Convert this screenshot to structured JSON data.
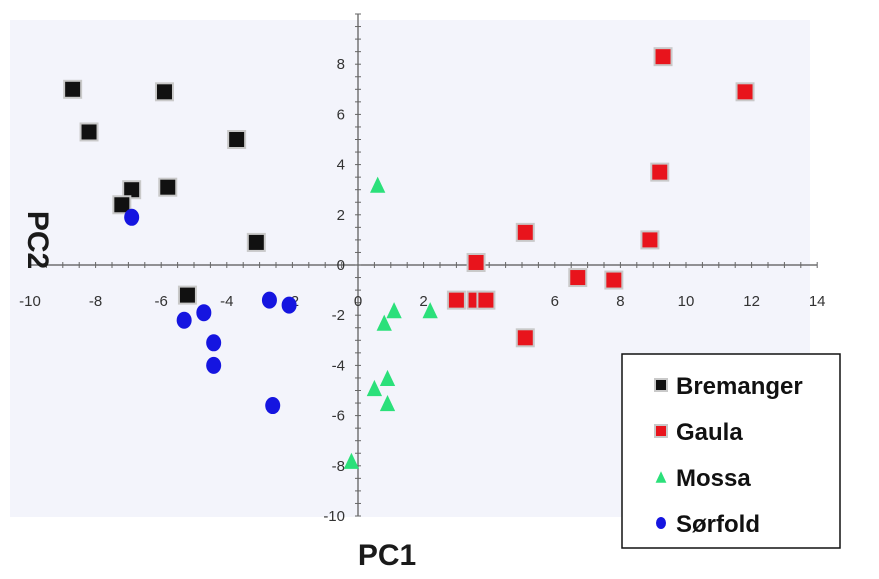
{
  "chart_data": {
    "type": "scatter",
    "title": "",
    "xlabel": "PC1",
    "ylabel": "PC2",
    "xlim": [
      -10,
      14
    ],
    "ylim": [
      -10,
      10
    ],
    "x_ticks": [
      "-10",
      "-8",
      "-6",
      "-4",
      "-2",
      "0",
      "2",
      "4",
      "6",
      "8",
      "10",
      "12",
      "14"
    ],
    "y_ticks": [
      "-10",
      "-8",
      "-6",
      "-4",
      "-2",
      "0",
      "2",
      "4",
      "6",
      "8"
    ],
    "grid": false,
    "legend_position": "bottom-right",
    "series": [
      {
        "name": "Bremanger",
        "color": "#111111",
        "marker": "square",
        "points": [
          [
            -8.7,
            7.0
          ],
          [
            -8.2,
            5.3
          ],
          [
            -5.9,
            6.9
          ],
          [
            -3.7,
            5.0
          ],
          [
            -6.9,
            3.0
          ],
          [
            -5.8,
            3.1
          ],
          [
            -7.2,
            2.4
          ],
          [
            -3.1,
            0.9
          ],
          [
            -5.2,
            -1.2
          ]
        ]
      },
      {
        "name": "Gaula",
        "color": "#e8141c",
        "marker": "square",
        "points": [
          [
            9.3,
            8.3
          ],
          [
            11.8,
            6.9
          ],
          [
            9.2,
            3.7
          ],
          [
            8.9,
            1.0
          ],
          [
            5.1,
            1.3
          ],
          [
            3.6,
            0.1
          ],
          [
            6.7,
            -0.5
          ],
          [
            7.8,
            -0.6
          ],
          [
            3.0,
            -1.4
          ],
          [
            3.6,
            -1.4
          ],
          [
            3.9,
            -1.4
          ],
          [
            5.1,
            -2.9
          ]
        ]
      },
      {
        "name": "Mossa",
        "color": "#2be07a",
        "marker": "triangle",
        "points": [
          [
            0.6,
            3.2
          ],
          [
            2.2,
            -1.8
          ],
          [
            1.1,
            -1.8
          ],
          [
            0.8,
            -2.3
          ],
          [
            0.9,
            -4.5
          ],
          [
            0.5,
            -4.9
          ],
          [
            0.9,
            -5.5
          ],
          [
            -0.2,
            -7.8
          ]
        ]
      },
      {
        "name": "Sørfold",
        "color": "#1515e0",
        "marker": "circle",
        "points": [
          [
            -6.9,
            1.9
          ],
          [
            -5.3,
            -2.2
          ],
          [
            -4.7,
            -1.9
          ],
          [
            -4.4,
            -3.1
          ],
          [
            -4.4,
            -4.0
          ],
          [
            -2.7,
            -1.4
          ],
          [
            -2.1,
            -1.6
          ],
          [
            -2.6,
            -5.6
          ]
        ]
      }
    ]
  }
}
